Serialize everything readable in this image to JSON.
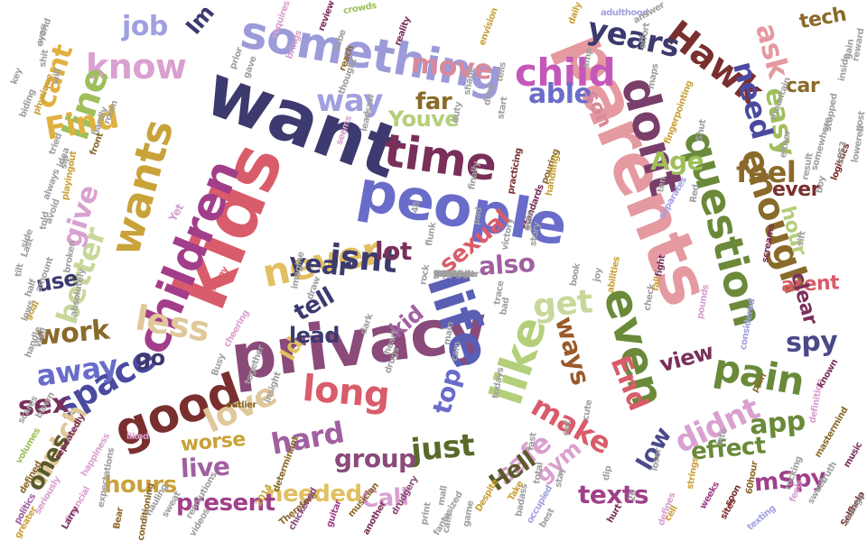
{
  "words": [
    {
      "text": "want",
      "color": "#3c3a6e"
    },
    {
      "text": "kids",
      "color": "#d95c6a"
    },
    {
      "text": "parents",
      "color": "#e49aa0"
    },
    {
      "text": "privacy",
      "color": "#8a4a7a"
    },
    {
      "text": "people",
      "color": "#6a6cc9"
    },
    {
      "text": "something",
      "color": "#9b9bd9"
    },
    {
      "text": "life",
      "color": "#5a5fb5"
    },
    {
      "text": "dont",
      "color": "#7a3e6a"
    },
    {
      "text": "children",
      "color": "#a23d8a"
    },
    {
      "text": "time",
      "color": "#7a2f5a"
    },
    {
      "text": "good",
      "color": "#7a2f2f"
    },
    {
      "text": "like",
      "color": "#b4cf7a"
    },
    {
      "text": "even",
      "color": "#6a8a3a"
    },
    {
      "text": "question",
      "color": "#6a8a3a"
    },
    {
      "text": "child",
      "color": "#c458b8"
    },
    {
      "text": "wants",
      "color": "#c9a23a"
    },
    {
      "text": "never",
      "color": "#e0c060"
    },
    {
      "text": "enough",
      "color": "#8a6a2a"
    },
    {
      "text": "Hawk",
      "color": "#7a2f2f"
    },
    {
      "text": "know",
      "color": "#d9a0d0"
    },
    {
      "text": "line",
      "color": "#9fbf5a"
    },
    {
      "text": "space",
      "color": "#4a4aa0"
    },
    {
      "text": "long",
      "color": "#d95c6a"
    },
    {
      "text": "pain",
      "color": "#6a8a3a"
    },
    {
      "text": "less",
      "color": "#e0c89a"
    },
    {
      "text": "love",
      "color": "#e0c89a"
    },
    {
      "text": "isnt",
      "color": "#3c3a6e"
    },
    {
      "text": "get",
      "color": "#c8d89a"
    },
    {
      "text": "years",
      "color": "#3c3a6e"
    },
    {
      "text": "Find",
      "color": "#e0b040"
    },
    {
      "text": "easy",
      "color": "#9fbf5a"
    },
    {
      "text": "ask",
      "color": "#e49aa0"
    },
    {
      "text": "didnt",
      "color": "#d9a0d0"
    },
    {
      "text": "need",
      "color": "#4a4aa0"
    },
    {
      "text": "make",
      "color": "#d95c6a"
    },
    {
      "text": "just",
      "color": "#5a6a2a"
    },
    {
      "text": "hard",
      "color": "#a060a0"
    },
    {
      "text": "better",
      "color": "#c8d89a"
    },
    {
      "text": "way",
      "color": "#a0a0e0"
    },
    {
      "text": "feel",
      "color": "#8a6a2a"
    },
    {
      "text": "away",
      "color": "#6a6cc9"
    },
    {
      "text": "move",
      "color": "#d98a9a"
    },
    {
      "text": "able",
      "color": "#6a6cc9"
    },
    {
      "text": "job",
      "color": "#a0a0e0"
    },
    {
      "text": "cant",
      "color": "#e0b040"
    },
    {
      "text": "give",
      "color": "#d9a0d0"
    },
    {
      "text": "work",
      "color": "#8a6a2a"
    },
    {
      "text": "sex",
      "color": "#7a2f5a"
    },
    {
      "text": "End",
      "color": "#d95c6a"
    },
    {
      "text": "safe",
      "color": "#d9a0d0"
    },
    {
      "text": "app",
      "color": "#6a8a3a"
    },
    {
      "text": "spy",
      "color": "#4a4a8a"
    },
    {
      "text": "Age",
      "color": "#9fbf5a"
    },
    {
      "text": "also",
      "color": "#a060a0"
    },
    {
      "text": "ways",
      "color": "#9a5a2a"
    },
    {
      "text": "lot",
      "color": "#7a2f5a"
    },
    {
      "text": "year",
      "color": "#3c3a6e"
    },
    {
      "text": "tell",
      "color": "#3c3a6e"
    },
    {
      "text": "group",
      "color": "#8a4a7a"
    },
    {
      "text": "live",
      "color": "#a060a0"
    },
    {
      "text": "needed",
      "color": "#e0c060"
    },
    {
      "text": "present",
      "color": "#a0408a"
    },
    {
      "text": "hours",
      "color": "#c9a23a"
    },
    {
      "text": "watch",
      "color": "#e0c89a"
    },
    {
      "text": "ones",
      "color": "#5a5a2a"
    },
    {
      "text": "Hell",
      "color": "#5a5a2a"
    },
    {
      "text": "Call",
      "color": "#d9a0d0"
    },
    {
      "text": "texts",
      "color": "#a0408a"
    },
    {
      "text": "mSpy",
      "color": "#a0408a"
    },
    {
      "text": "effect",
      "color": "#6a8a3a"
    },
    {
      "text": "low",
      "color": "#4a4a8a"
    },
    {
      "text": "gym",
      "color": "#d9a0d0"
    },
    {
      "text": "view",
      "color": "#7a2f5a"
    },
    {
      "text": "top",
      "color": "#6a6cc9"
    },
    {
      "text": "sexual",
      "color": "#d95c6a"
    },
    {
      "text": "kid",
      "color": "#a060a0"
    },
    {
      "text": "Id",
      "color": "#e0c060"
    },
    {
      "text": "go",
      "color": "#3c3a6e"
    },
    {
      "text": "use",
      "color": "#3c3a6e"
    },
    {
      "text": "lead",
      "color": "#3c3a6e"
    },
    {
      "text": "far",
      "color": "#8a6a2a"
    },
    {
      "text": "Youve",
      "color": "#b4cf7a"
    },
    {
      "text": "Im",
      "color": "#3c3a6e"
    },
    {
      "text": "car",
      "color": "#8a6a2a"
    },
    {
      "text": "tech",
      "color": "#8a6a2a"
    },
    {
      "text": "ever",
      "color": "#7a2f2f"
    },
    {
      "text": "hour",
      "color": "#b4cf7a"
    },
    {
      "text": "arent",
      "color": "#d95c6a"
    },
    {
      "text": "clear",
      "color": "#7a2f5a"
    },
    {
      "text": "worse",
      "color": "#c9a23a"
    },
    {
      "text": "son",
      "color": "#d98a9a"
    },
    {
      "text": "Yet",
      "color": "#d9a0d0"
    },
    {
      "text": "tilt",
      "color": "#a0a0a0"
    },
    {
      "text": "goal",
      "color": "#c9a23a"
    },
    {
      "text": "Despite",
      "color": "#c9a23a"
    },
    {
      "text": "drudgery",
      "color": "#8a4a7a"
    },
    {
      "text": "musician",
      "color": "#8a6a2a"
    },
    {
      "text": "politics",
      "color": "#a060a0"
    },
    {
      "text": "financial",
      "color": "#d9a0d0"
    },
    {
      "text": "2014",
      "color": "#c9a23a"
    },
    {
      "text": "Therefore",
      "color": "#8a6a2a"
    },
    {
      "text": "texting",
      "color": "#a0a0e0"
    },
    {
      "text": "weeks",
      "color": "#a0408a"
    },
    {
      "text": "Selfhelp",
      "color": "#7a2f2f"
    },
    {
      "text": "definition",
      "color": "#d9a0d0"
    },
    {
      "text": "mastermind",
      "color": "#8a6a2a"
    },
    {
      "text": "happiness",
      "color": "#d9a0d0"
    },
    {
      "text": "crowds",
      "color": "#9fbf5a"
    },
    {
      "text": "world",
      "color": "#a0a0a0"
    },
    {
      "text": "physique",
      "color": "#c9a23a"
    },
    {
      "text": "envision",
      "color": "#c9a23a"
    },
    {
      "text": "reality",
      "color": "#7a2f5a"
    },
    {
      "text": "adulthood",
      "color": "#a0a0e0"
    },
    {
      "text": "mountain",
      "color": "#a0a0a0"
    },
    {
      "text": "logistics",
      "color": "#7a2f2f"
    },
    {
      "text": "pouring",
      "color": "#8a6a2a"
    },
    {
      "text": "standards",
      "color": "#7a2f5a"
    },
    {
      "text": "separates",
      "color": "#a0a0e0"
    },
    {
      "text": "alimony",
      "color": "#d95c6a"
    },
    {
      "text": "playingout",
      "color": "#c9a23a"
    },
    {
      "text": "somewhere",
      "color": "#a0a0a0"
    },
    {
      "text": "fingerpointing",
      "color": "#c9a23a"
    },
    {
      "text": "screams",
      "color": "#7a2f5a"
    },
    {
      "text": "defines",
      "color": "#d9a0d0"
    },
    {
      "text": "videos",
      "color": "#a0a0a0"
    },
    {
      "text": "chickened",
      "color": "#8a4a7a"
    },
    {
      "text": "conditioning",
      "color": "#8a6a2a"
    },
    {
      "text": "expectations",
      "color": "#a0a0a0"
    },
    {
      "text": "cheering",
      "color": "#d9a0d0"
    },
    {
      "text": "determinant",
      "color": "#8a6a2a"
    },
    {
      "text": "practicing",
      "color": "#7a2f2f"
    },
    {
      "text": "rocking",
      "color": "#a0a0a0"
    },
    {
      "text": "badass",
      "color": "#a0a0a0"
    },
    {
      "text": "fantasized",
      "color": "#a0a0a0"
    },
    {
      "text": "repeatedly",
      "color": "#7a2f5a"
    },
    {
      "text": "handling",
      "color": "#c9a23a"
    },
    {
      "text": "occupied",
      "color": "#a0a0e0"
    },
    {
      "text": "considered",
      "color": "#a0a0e0"
    },
    {
      "text": "abilities",
      "color": "#c9a23a"
    },
    {
      "text": "resolutions",
      "color": "#a0a0a0"
    },
    {
      "text": "guitar",
      "color": "#a0408a"
    },
    {
      "text": "hauling",
      "color": "#a0a0a0"
    },
    {
      "text": "sweat",
      "color": "#a0a0a0"
    },
    {
      "text": "Bear",
      "color": "#8a6a2a"
    },
    {
      "text": "Larry",
      "color": "#7a2f5a"
    },
    {
      "text": "seriously",
      "color": "#d9a0d0"
    },
    {
      "text": "defined",
      "color": "#8a6a2a"
    },
    {
      "text": "scares",
      "color": "#a0a0a0"
    },
    {
      "text": "volumes",
      "color": "#9fbf5a"
    },
    {
      "text": "greater",
      "color": "#c9a23a"
    },
    {
      "text": "blown",
      "color": "#a0a0a0"
    },
    {
      "text": "liked",
      "color": "#d9a0d0"
    },
    {
      "text": "outlier",
      "color": "#8a6a2a"
    },
    {
      "text": "another",
      "color": "#7a2f5a"
    },
    {
      "text": "Take",
      "color": "#c9a23a"
    },
    {
      "text": "best",
      "color": "#a0a0a0"
    },
    {
      "text": "hurt",
      "color": "#7a2f5a"
    },
    {
      "text": "cell",
      "color": "#c9a23a"
    },
    {
      "text": "sites",
      "color": "#7a2f2f"
    },
    {
      "text": "feels",
      "color": "#d9a0d0"
    },
    {
      "text": "change",
      "color": "#a0a0a0"
    },
    {
      "text": "music",
      "color": "#7a2f5a"
    },
    {
      "text": "sweet",
      "color": "#a0a0a0"
    },
    {
      "text": "truth",
      "color": "#a0a0a0"
    },
    {
      "text": "known",
      "color": "#7a2f5a"
    },
    {
      "text": "plan",
      "color": "#8a6a2a"
    },
    {
      "text": "soon",
      "color": "#7a2f2f"
    },
    {
      "text": "late",
      "color": "#a0a0a0"
    },
    {
      "text": "60hour",
      "color": "#8a6a2a"
    },
    {
      "text": "strings",
      "color": "#c9a23a"
    },
    {
      "text": "pounds",
      "color": "#d9a0d0"
    },
    {
      "text": "fall",
      "color": "#c9a23a"
    },
    {
      "text": "fight",
      "color": "#7a2f5a"
    },
    {
      "text": "effort",
      "color": "#a0a0a0"
    },
    {
      "text": "answer",
      "color": "#a0a0a0"
    },
    {
      "text": "daily",
      "color": "#c9a23a"
    },
    {
      "text": "review",
      "color": "#7a2f5a"
    },
    {
      "text": "requires",
      "color": "#d9a0d0"
    },
    {
      "text": "gave",
      "color": "#a0a0a0"
    },
    {
      "text": "prior",
      "color": "#a0a0a0"
    },
    {
      "text": "brings",
      "color": "#d9a0d0"
    },
    {
      "text": "tube",
      "color": "#a0a0a0"
    },
    {
      "text": "reach",
      "color": "#8a6a2a"
    },
    {
      "text": "thought",
      "color": "#a0a0a0"
    },
    {
      "text": "seems",
      "color": "#d9a0d0"
    },
    {
      "text": "room",
      "color": "#a0a0a0"
    },
    {
      "text": "hardly",
      "color": "#a0a0a0"
    },
    {
      "text": "front",
      "color": "#8a6a2a"
    },
    {
      "text": "tried",
      "color": "#a0a0a0"
    },
    {
      "text": "idea",
      "color": "#a0a0a0"
    },
    {
      "text": "biding",
      "color": "#a0a0a0"
    },
    {
      "text": "key",
      "color": "#a0a0a0"
    },
    {
      "text": "always",
      "color": "#a0a0a0"
    },
    {
      "text": "avoid",
      "color": "#a0a0a0"
    },
    {
      "text": "side",
      "color": "#a0a0a0"
    },
    {
      "text": "Last",
      "color": "#a0a0a0"
    },
    {
      "text": "amount",
      "color": "#a0a0a0"
    },
    {
      "text": "half",
      "color": "#a0a0a0"
    },
    {
      "text": "lows",
      "color": "#a0a0a0"
    },
    {
      "text": "handle",
      "color": "#a0a0a0"
    },
    {
      "text": "Well",
      "color": "#a0a0a0"
    },
    {
      "text": "Busy",
      "color": "#a0a0a0"
    },
    {
      "text": "together",
      "color": "#a0a0a0"
    },
    {
      "text": "insight",
      "color": "#a0a0a0"
    },
    {
      "text": "imagine",
      "color": "#a0a0a0"
    },
    {
      "text": "draw",
      "color": "#a0a0a0"
    },
    {
      "text": "dark",
      "color": "#a0a0a0"
    },
    {
      "text": "heart",
      "color": "#a0a0a0"
    },
    {
      "text": "drugs",
      "color": "#a0a0a0"
    },
    {
      "text": "cam",
      "color": "#a0a0a0"
    },
    {
      "text": "main",
      "color": "#a0a0a0"
    },
    {
      "text": "flunk",
      "color": "#a0a0a0"
    },
    {
      "text": "48",
      "color": "#a0a0a0"
    },
    {
      "text": "rock",
      "color": "#a0a0a0"
    },
    {
      "text": "book",
      "color": "#a0a0a0"
    },
    {
      "text": "todays",
      "color": "#a0a0a0"
    },
    {
      "text": "fast",
      "color": "#a0a0a0"
    },
    {
      "text": "eat",
      "color": "#a0a0a0"
    },
    {
      "text": "total",
      "color": "#a0a0a0"
    },
    {
      "text": "mall",
      "color": "#a0a0a0"
    },
    {
      "text": "print",
      "color": "#a0a0a0"
    },
    {
      "text": "game",
      "color": "#a0a0a0"
    },
    {
      "text": "calls",
      "color": "#a0a0a0"
    },
    {
      "text": "check",
      "color": "#a0a0a0"
    },
    {
      "text": "stay",
      "color": "#a0a0a0"
    },
    {
      "text": "dip",
      "color": "#a0a0a0"
    },
    {
      "text": "20",
      "color": "#a0a0a0"
    },
    {
      "text": "loser",
      "color": "#a0a0a0"
    },
    {
      "text": "cute",
      "color": "#a0a0a0"
    },
    {
      "text": "sift",
      "color": "#a0a0a0"
    },
    {
      "text": "result",
      "color": "#a0a0a0"
    },
    {
      "text": "either",
      "color": "#a0a0a0"
    },
    {
      "text": "stopped",
      "color": "#a0a0a0"
    },
    {
      "text": "inside",
      "color": "#a0a0a0"
    },
    {
      "text": "gain",
      "color": "#a0a0a0"
    },
    {
      "text": "reward",
      "color": "#a0a0a0"
    },
    {
      "text": "post",
      "color": "#a0a0a0"
    },
    {
      "text": "boy",
      "color": "#a0a0a0"
    },
    {
      "text": "1953",
      "color": "#a0a0a0"
    },
    {
      "text": "lowered",
      "color": "#a0a0a0"
    },
    {
      "text": "maps",
      "color": "#a0a0a0"
    },
    {
      "text": "ten",
      "color": "#a0a0a0"
    },
    {
      "text": "Red",
      "color": "#a0a0a0"
    },
    {
      "text": "Shut",
      "color": "#a0a0a0"
    },
    {
      "text": "joy",
      "color": "#a0a0a0"
    },
    {
      "text": "amp",
      "color": "#a0a0a0"
    },
    {
      "text": "start",
      "color": "#a0a0a0"
    },
    {
      "text": "drug",
      "color": "#a0a0a0"
    },
    {
      "text": "tells",
      "color": "#a0a0a0"
    },
    {
      "text": "shape",
      "color": "#a0a0a0"
    },
    {
      "text": "duty",
      "color": "#a0a0a0"
    },
    {
      "text": "pad",
      "color": "#a0a0a0"
    },
    {
      "text": "gets",
      "color": "#a0a0a0"
    },
    {
      "text": "story",
      "color": "#a0a0a0"
    },
    {
      "text": "victory",
      "color": "#a0a0a0"
    },
    {
      "text": "trace",
      "color": "#a0a0a0"
    },
    {
      "text": "bad",
      "color": "#a0a0a0"
    },
    {
      "text": "finally",
      "color": "#a0a0a0"
    },
    {
      "text": "saw",
      "color": "#a0a0a0"
    },
    {
      "text": "lead",
      "color": "#a0a0a0"
    },
    {
      "text": "eyes",
      "color": "#a0a0a0"
    },
    {
      "text": "shit",
      "color": "#a0a0a0"
    },
    {
      "text": "will",
      "color": "#a0a0a0"
    },
    {
      "text": "sip",
      "color": "#a0a0a0"
    },
    {
      "text": "told",
      "color": "#a0a0a0"
    },
    {
      "text": "broken",
      "color": "#a0a0a0"
    },
    {
      "text": "absolutely",
      "color": "#a0a0a0"
    },
    {
      "text": "resultthe",
      "color": "#a0a0a0"
    },
    {
      "text": "milehigh",
      "color": "#a0a0a0"
    },
    {
      "text": "fail",
      "color": "#a0a0a0"
    },
    {
      "text": "heard",
      "color": "#a0a0a0"
    },
    {
      "text": "AD",
      "color": "#a0a0a0"
    },
    {
      "text": "sea",
      "color": "#a0a0a0"
    },
    {
      "text": "first",
      "color": "#a0a0a0"
    },
    {
      "text": "join",
      "color": "#a0a0a0"
    },
    {
      "text": "losing",
      "color": "#a0a0a0"
    },
    {
      "text": "invest",
      "color": "#a0a0a0"
    },
    {
      "text": "strip",
      "color": "#a0a0a0"
    },
    {
      "text": "particular",
      "color": "#a0a0a0"
    },
    {
      "text": "manifest",
      "color": "#a0a0a0"
    },
    {
      "text": "food",
      "color": "#a0a0a0"
    },
    {
      "text": "infinite",
      "color": "#a0a0a0"
    },
    {
      "text": "rate",
      "color": "#a0a0a0"
    },
    {
      "text": "probe",
      "color": "#a0a0a0"
    },
    {
      "text": "try",
      "color": "#a0a0a0"
    },
    {
      "text": "fence",
      "color": "#a0a0a0"
    },
    {
      "text": "guy",
      "color": "#a0a0a0"
    },
    {
      "text": "doubt",
      "color": "#a0a0a0"
    },
    {
      "text": "leave",
      "color": "#a0a0a0"
    }
  ]
}
